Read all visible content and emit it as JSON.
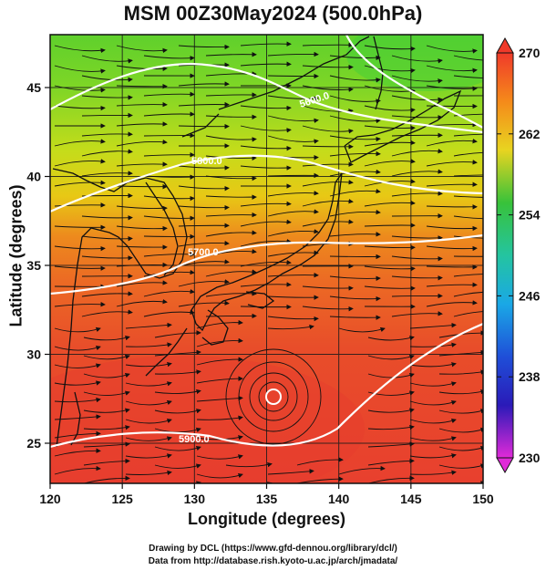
{
  "title": "MSM 00Z30May2024 (500.0hPa)",
  "axes": {
    "xlabel": "Longitude (degrees)",
    "ylabel": "Latitude  (degrees)",
    "x_ticks": [
      "120",
      "125",
      "130",
      "135",
      "140",
      "145",
      "150"
    ],
    "y_ticks": [
      "25",
      "30",
      "35",
      "40",
      "45"
    ]
  },
  "colorbar": {
    "labels": [
      "270",
      "262",
      "254",
      "246",
      "238",
      "230"
    ],
    "min": 230,
    "max": 270
  },
  "contour_labels": [
    "5600.0",
    "5800.0",
    "5700.0",
    "5600.0",
    "5900.0"
  ],
  "credits": {
    "line1": "Drawing by DCL (https://www.gfd-dennou.org/library/dcl/)",
    "line2": "Data from http://database.rish.kyoto-u.ac.jp/arch/jmadata/"
  },
  "colors": {
    "warm": "#e8442e",
    "cool": "#2ec42e"
  }
}
